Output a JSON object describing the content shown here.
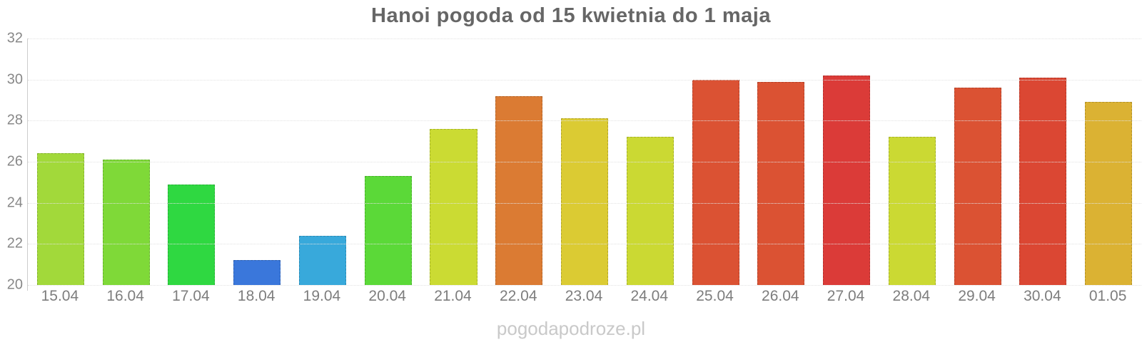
{
  "title": "Hanoi pogoda od 15 kwietnia do 1 maja",
  "watermark": "pogodapodroze.pl",
  "chart_data": {
    "type": "bar",
    "title": "Hanoi pogoda od 15 kwietnia do 1 maja",
    "categories": [
      "15.04",
      "16.04",
      "17.04",
      "18.04",
      "19.04",
      "20.04",
      "21.04",
      "22.04",
      "23.04",
      "24.04",
      "25.04",
      "26.04",
      "27.04",
      "28.04",
      "29.04",
      "30.04",
      "01.05"
    ],
    "values": [
      26.4,
      26.1,
      24.9,
      21.2,
      22.4,
      25.3,
      27.6,
      29.2,
      28.1,
      27.2,
      30.0,
      29.9,
      30.2,
      27.2,
      29.6,
      30.1,
      28.9
    ],
    "bar_colors": [
      "#a2d93a",
      "#7fd938",
      "#2fd841",
      "#3a77db",
      "#38a9db",
      "#5bd938",
      "#cbdb33",
      "#db7b33",
      "#dbcb33",
      "#cbd933",
      "#db5233",
      "#db5233",
      "#db3b38",
      "#cbd933",
      "#db5233",
      "#db4733",
      "#dbb233"
    ],
    "xlabel": "",
    "ylabel": "",
    "ylim": [
      20,
      32
    ],
    "yticks": [
      20,
      22,
      24,
      26,
      28,
      30,
      32
    ],
    "grid": true,
    "legend": "none",
    "axis_color": "#cccccc",
    "gridline_color": "#e2e2e2",
    "tick_label_color": "#888888",
    "title_color": "#666666",
    "watermark_color": "#c9c9c9"
  }
}
